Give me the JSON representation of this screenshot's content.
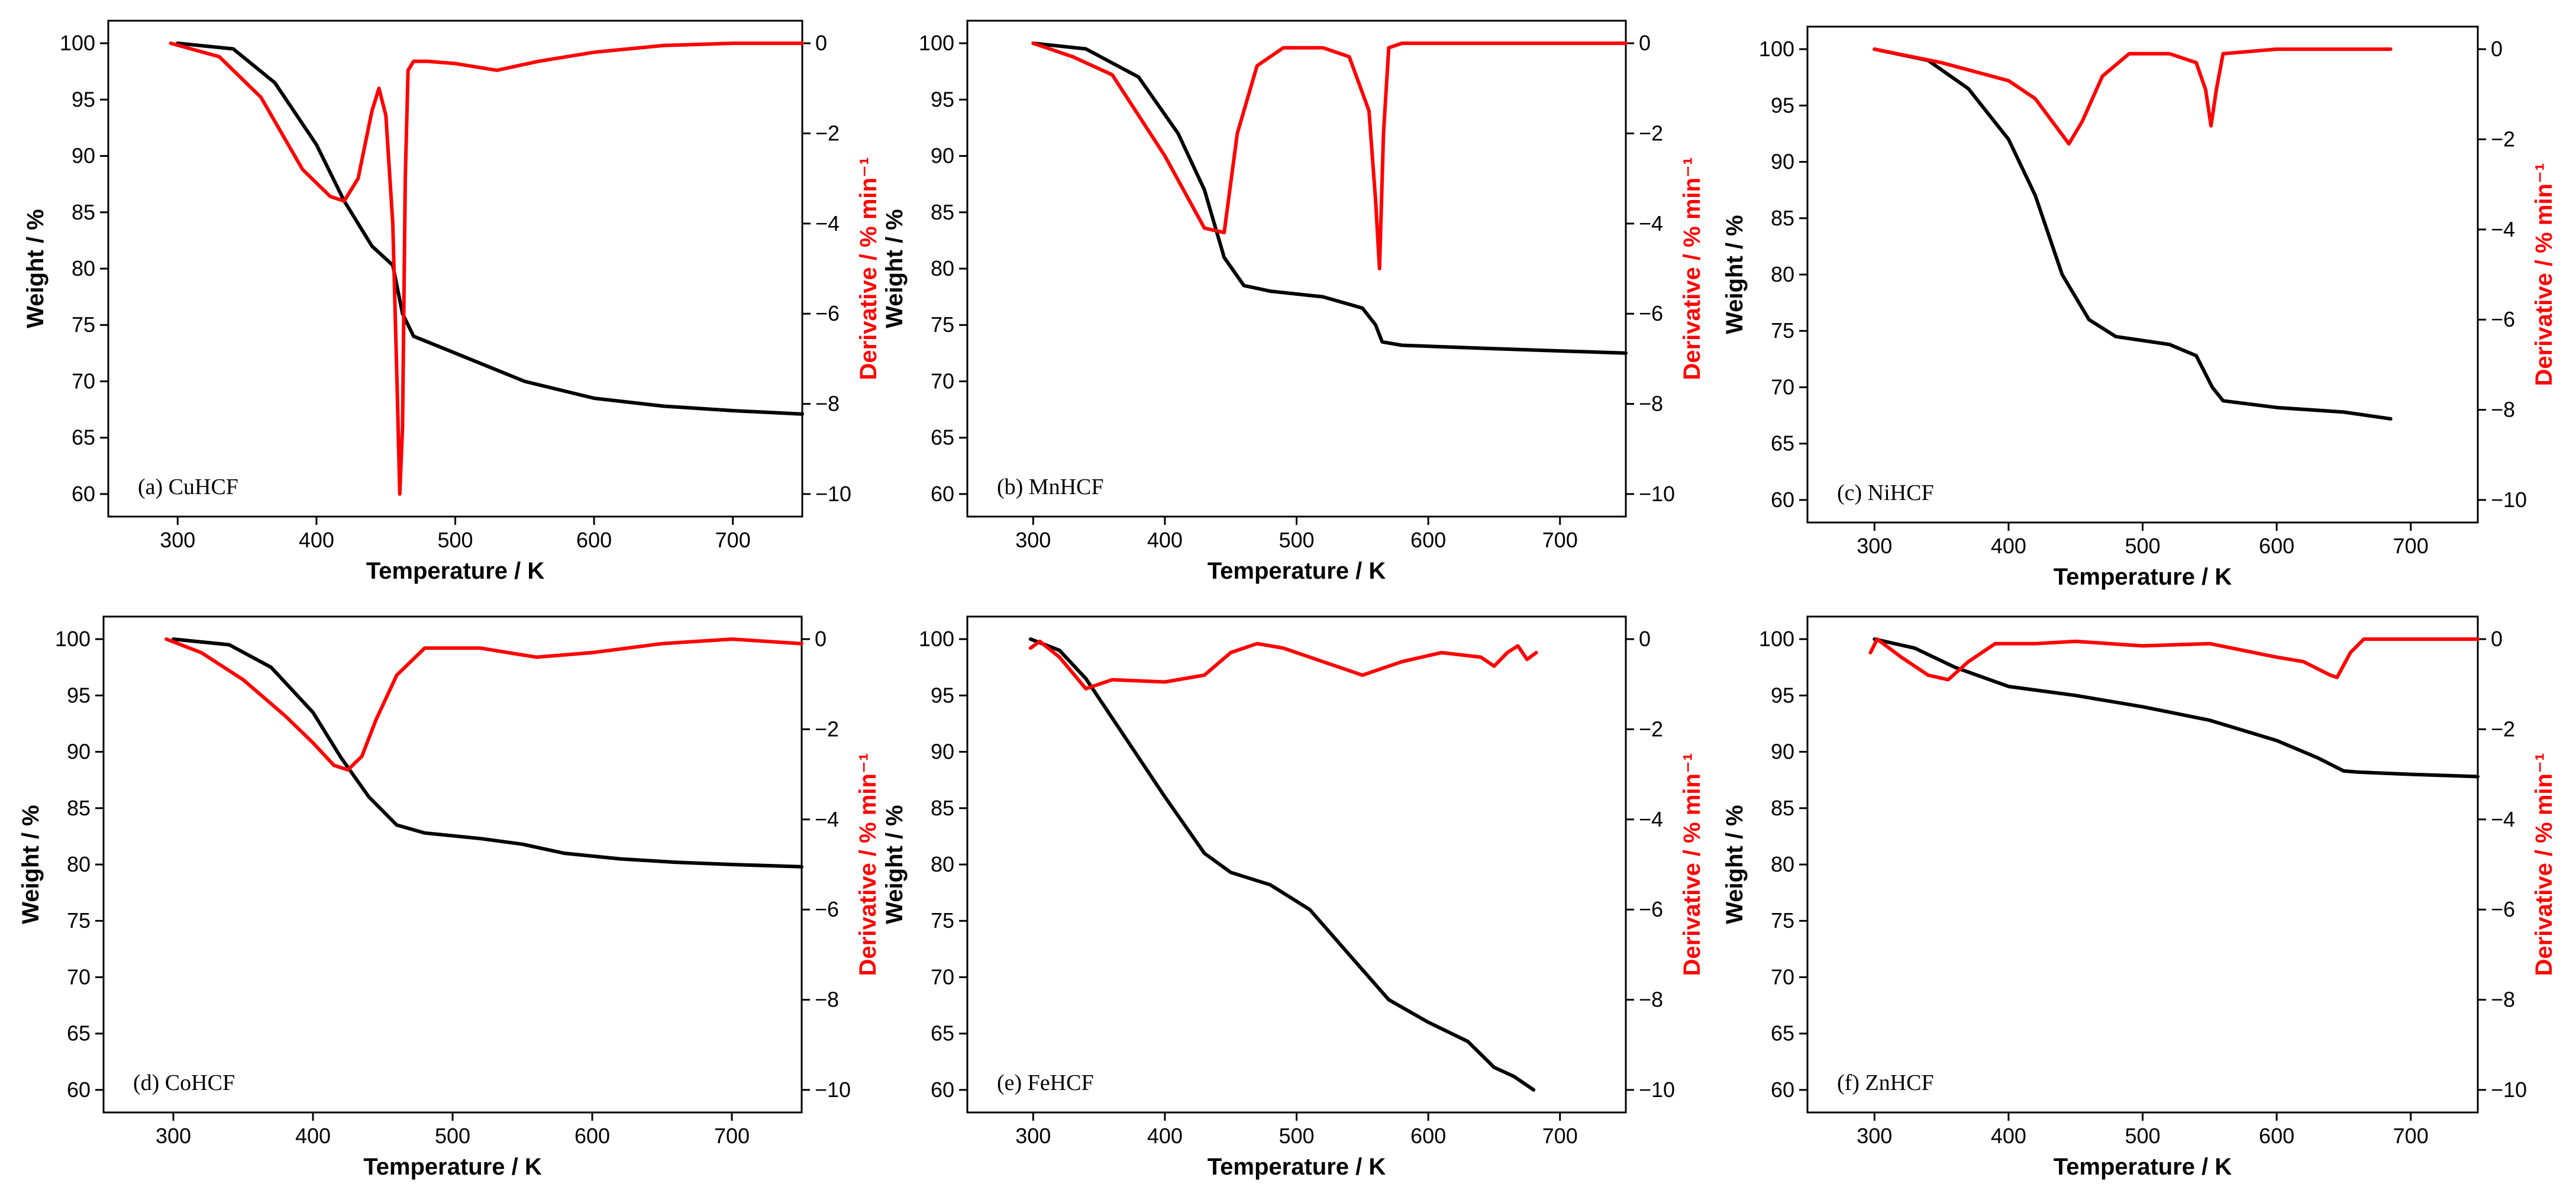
{
  "figure": {
    "colors": {
      "weight": "#000000",
      "derivative": "#ff0000",
      "axis": "#000000",
      "background": "#ffffff"
    },
    "axis_labels": {
      "x": "Temperature / K",
      "y_left": "Weight / %",
      "y_right": "Derivative / % min⁻¹"
    }
  },
  "chart_data": [
    {
      "type": "line",
      "panel": "a",
      "title": "(a) CuHCF",
      "xlabel": "Temperature / K",
      "ylabel": "Weight / %",
      "y2label": "Derivative / % min⁻¹",
      "xlim": [
        250,
        750
      ],
      "ylim": [
        58,
        102
      ],
      "y2lim": [
        -10.5,
        0.5
      ],
      "xticks": [
        300,
        400,
        500,
        600,
        700
      ],
      "yticks": [
        60,
        65,
        70,
        75,
        80,
        85,
        90,
        95,
        100
      ],
      "y2ticks": [
        -10,
        -8,
        -6,
        -4,
        -2,
        0
      ],
      "series": [
        {
          "name": "Weight",
          "axis": "left",
          "color": "#000000",
          "x": [
            300,
            340,
            370,
            400,
            420,
            440,
            455,
            462,
            470,
            500,
            550,
            600,
            650,
            700,
            750
          ],
          "y": [
            100,
            99.5,
            96.5,
            91,
            86,
            82,
            80.3,
            76,
            74,
            72.5,
            70,
            68.5,
            67.8,
            67.4,
            67.1
          ]
        },
        {
          "name": "Derivative",
          "axis": "right",
          "color": "#ff0000",
          "x": [
            295,
            330,
            360,
            390,
            410,
            420,
            430,
            440,
            445,
            450,
            455,
            458,
            460,
            462,
            464,
            466,
            470,
            480,
            500,
            530,
            560,
            600,
            650,
            700,
            750
          ],
          "y": [
            0,
            -0.3,
            -1.2,
            -2.8,
            -3.4,
            -3.5,
            -3.0,
            -1.5,
            -1.0,
            -1.6,
            -4.0,
            -7.5,
            -10.0,
            -8.5,
            -3.0,
            -0.6,
            -0.4,
            -0.4,
            -0.45,
            -0.6,
            -0.4,
            -0.2,
            -0.05,
            0,
            0
          ]
        }
      ]
    },
    {
      "type": "line",
      "panel": "b",
      "title": "(b) MnHCF",
      "xlabel": "Temperature / K",
      "ylabel": "Weight / %",
      "y2label": "Derivative / % min⁻¹",
      "xlim": [
        250,
        750
      ],
      "ylim": [
        58,
        102
      ],
      "y2lim": [
        -10.5,
        0.5
      ],
      "xticks": [
        300,
        400,
        500,
        600,
        700
      ],
      "yticks": [
        60,
        65,
        70,
        75,
        80,
        85,
        90,
        95,
        100
      ],
      "y2ticks": [
        -10,
        -8,
        -6,
        -4,
        -2,
        0
      ],
      "series": [
        {
          "name": "Weight",
          "axis": "left",
          "color": "#000000",
          "x": [
            300,
            340,
            380,
            410,
            430,
            445,
            460,
            480,
            520,
            550,
            560,
            565,
            580,
            650,
            750
          ],
          "y": [
            100,
            99.5,
            97,
            92,
            87,
            81,
            78.5,
            78,
            77.5,
            76.5,
            75,
            73.5,
            73.2,
            72.9,
            72.5
          ]
        },
        {
          "name": "Derivative",
          "axis": "right",
          "color": "#ff0000",
          "x": [
            300,
            330,
            360,
            400,
            430,
            445,
            455,
            470,
            490,
            520,
            540,
            555,
            560,
            563,
            566,
            570,
            580,
            650,
            750
          ],
          "y": [
            0,
            -0.3,
            -0.7,
            -2.5,
            -4.1,
            -4.2,
            -2.0,
            -0.5,
            -0.1,
            -0.1,
            -0.3,
            -1.5,
            -3.5,
            -5.0,
            -2.0,
            -0.1,
            0,
            0,
            0
          ]
        }
      ]
    },
    {
      "type": "line",
      "panel": "c",
      "title": "(c) NiHCF",
      "xlabel": "Temperature / K",
      "ylabel": "Weight / %",
      "y2label": "Derivative / % min⁻¹",
      "xlim": [
        250,
        750
      ],
      "ylim": [
        58,
        102
      ],
      "y2lim": [
        -10.5,
        0.5
      ],
      "xticks": [
        300,
        400,
        500,
        600,
        700
      ],
      "yticks": [
        60,
        65,
        70,
        75,
        80,
        85,
        90,
        95,
        100
      ],
      "y2ticks": [
        -10,
        -8,
        -6,
        -4,
        -2,
        0
      ],
      "series": [
        {
          "name": "Weight",
          "axis": "left",
          "color": "#000000",
          "x": [
            300,
            340,
            370,
            400,
            420,
            440,
            460,
            480,
            520,
            540,
            552,
            560,
            600,
            650,
            685
          ],
          "y": [
            100,
            99,
            96.5,
            92,
            87,
            80,
            76,
            74.5,
            73.8,
            72.8,
            70,
            68.8,
            68.2,
            67.8,
            67.2
          ]
        },
        {
          "name": "Derivative",
          "axis": "right",
          "color": "#ff0000",
          "x": [
            300,
            350,
            400,
            420,
            435,
            445,
            455,
            470,
            490,
            520,
            540,
            547,
            551,
            555,
            560,
            600,
            650,
            685
          ],
          "y": [
            0,
            -0.3,
            -0.7,
            -1.1,
            -1.7,
            -2.1,
            -1.6,
            -0.6,
            -0.1,
            -0.1,
            -0.3,
            -0.9,
            -1.7,
            -0.9,
            -0.1,
            0,
            0,
            0
          ]
        }
      ]
    },
    {
      "type": "line",
      "panel": "d",
      "title": "(d) CoHCF",
      "xlabel": "Temperature / K",
      "ylabel": "Weight / %",
      "y2label": "Derivative / % min⁻¹",
      "xlim": [
        250,
        750
      ],
      "ylim": [
        58,
        102
      ],
      "y2lim": [
        -10.5,
        0.5
      ],
      "xticks": [
        300,
        400,
        500,
        600,
        700
      ],
      "yticks": [
        60,
        65,
        70,
        75,
        80,
        85,
        90,
        95,
        100
      ],
      "y2ticks": [
        -10,
        -8,
        -6,
        -4,
        -2,
        0
      ],
      "series": [
        {
          "name": "Weight",
          "axis": "left",
          "color": "#000000",
          "x": [
            300,
            340,
            370,
            400,
            420,
            440,
            460,
            480,
            520,
            550,
            580,
            620,
            660,
            700,
            750
          ],
          "y": [
            100,
            99.5,
            97.5,
            93.5,
            89.5,
            86,
            83.5,
            82.8,
            82.3,
            81.8,
            81,
            80.5,
            80.2,
            80,
            79.8
          ]
        },
        {
          "name": "Derivative",
          "axis": "right",
          "color": "#ff0000",
          "x": [
            295,
            320,
            350,
            380,
            400,
            415,
            425,
            435,
            445,
            460,
            480,
            520,
            560,
            600,
            650,
            700,
            750
          ],
          "y": [
            0,
            -0.3,
            -0.9,
            -1.7,
            -2.3,
            -2.8,
            -2.9,
            -2.6,
            -1.8,
            -0.8,
            -0.2,
            -0.2,
            -0.4,
            -0.3,
            -0.1,
            0,
            -0.1
          ]
        }
      ]
    },
    {
      "type": "line",
      "panel": "e",
      "title": "(e) FeHCF",
      "xlabel": "Temperature / K",
      "ylabel": "Weight / %",
      "y2label": "Derivative / % min⁻¹",
      "xlim": [
        250,
        750
      ],
      "ylim": [
        58,
        102
      ],
      "y2lim": [
        -10.5,
        0.5
      ],
      "xticks": [
        300,
        400,
        500,
        600,
        700
      ],
      "yticks": [
        60,
        65,
        70,
        75,
        80,
        85,
        90,
        95,
        100
      ],
      "y2ticks": [
        -10,
        -8,
        -6,
        -4,
        -2,
        0
      ],
      "series": [
        {
          "name": "Weight",
          "axis": "left",
          "color": "#000000",
          "x": [
            298,
            320,
            340,
            360,
            400,
            430,
            450,
            480,
            510,
            540,
            570,
            600,
            630,
            650,
            665,
            680
          ],
          "y": [
            100,
            99,
            96.5,
            93,
            86,
            81,
            79.3,
            78.2,
            76,
            72,
            68,
            66,
            64.3,
            62,
            61.2,
            60
          ]
        },
        {
          "name": "Derivative",
          "axis": "right",
          "color": "#ff0000",
          "x": [
            298,
            305,
            320,
            340,
            360,
            400,
            430,
            450,
            470,
            490,
            520,
            550,
            580,
            610,
            640,
            650,
            660,
            668,
            675,
            682
          ],
          "y": [
            -0.2,
            -0.05,
            -0.4,
            -1.1,
            -0.9,
            -0.95,
            -0.8,
            -0.3,
            -0.1,
            -0.2,
            -0.5,
            -0.8,
            -0.5,
            -0.3,
            -0.4,
            -0.6,
            -0.3,
            -0.15,
            -0.45,
            -0.3
          ]
        }
      ]
    },
    {
      "type": "line",
      "panel": "f",
      "title": "(f) ZnHCF",
      "xlabel": "Temperature / K",
      "ylabel": "Weight / %",
      "y2label": "Derivative / % min⁻¹",
      "xlim": [
        250,
        750
      ],
      "ylim": [
        58,
        102
      ],
      "y2lim": [
        -10.5,
        0.5
      ],
      "xticks": [
        300,
        400,
        500,
        600,
        700
      ],
      "yticks": [
        60,
        65,
        70,
        75,
        80,
        85,
        90,
        95,
        100
      ],
      "y2ticks": [
        -10,
        -8,
        -6,
        -4,
        -2,
        0
      ],
      "series": [
        {
          "name": "Weight",
          "axis": "left",
          "color": "#000000",
          "x": [
            300,
            330,
            360,
            400,
            450,
            500,
            550,
            600,
            630,
            650,
            660,
            700,
            750
          ],
          "y": [
            100,
            99.2,
            97.5,
            95.8,
            95,
            94,
            92.8,
            91,
            89.5,
            88.3,
            88.2,
            88,
            87.8
          ]
        },
        {
          "name": "Derivative",
          "axis": "right",
          "color": "#ff0000",
          "x": [
            297,
            302,
            320,
            340,
            355,
            370,
            390,
            420,
            450,
            500,
            550,
            600,
            620,
            640,
            645,
            655,
            665,
            700,
            750
          ],
          "y": [
            -0.3,
            0,
            -0.4,
            -0.8,
            -0.9,
            -0.5,
            -0.1,
            -0.1,
            -0.05,
            -0.15,
            -0.1,
            -0.4,
            -0.5,
            -0.8,
            -0.85,
            -0.3,
            0,
            0,
            0
          ]
        }
      ]
    }
  ]
}
